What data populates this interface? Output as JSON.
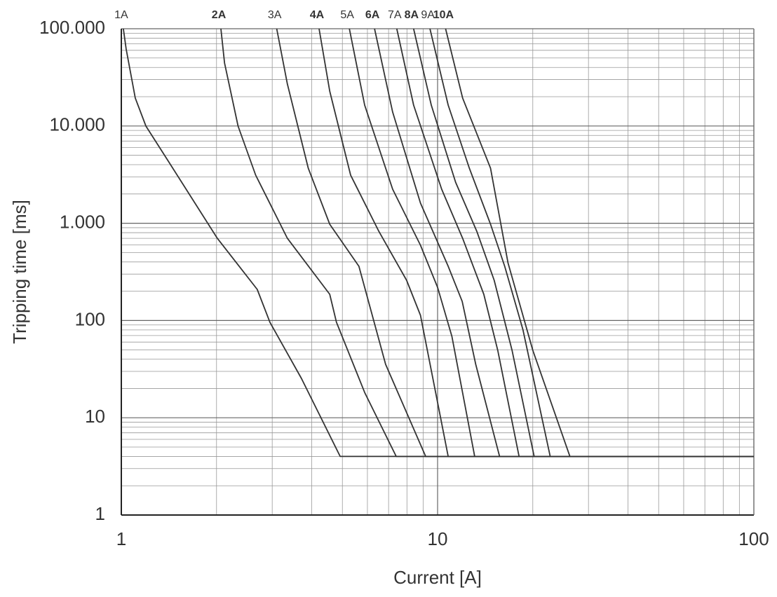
{
  "chart_data": {
    "type": "line",
    "x_label": "Current [A]",
    "y_label": "Tripping time [ms]",
    "xlog": true,
    "ylog": true,
    "grid": true,
    "minor_grid": true,
    "xlim": [
      1,
      100
    ],
    "xticks": [
      1,
      10,
      100
    ],
    "ylim": [
      1,
      100000
    ],
    "yticks": [
      1,
      10,
      100,
      {
        "value": 1000,
        "label": "1.000"
      },
      {
        "value": 10000,
        "label": "10.000"
      },
      {
        "value": 100000,
        "label": "100.000"
      }
    ],
    "series": [
      {
        "name": "1A",
        "bold": false,
        "color": "#333333",
        "x": [
          1.015,
          1.036,
          1.107,
          1.196,
          1.408,
          2.012,
          2.69,
          2.95,
          3.71,
          4.92,
          100
        ],
        "values": [
          100000,
          61800,
          19400,
          9960,
          4350,
          700,
          209,
          96,
          25.4,
          4,
          4
        ]
      },
      {
        "name": "2A",
        "bold": true,
        "color": "#333333",
        "x": [
          2.065,
          2.12,
          2.34,
          2.66,
          3.35,
          4.56,
          4.79,
          5.88,
          7.4,
          100
        ],
        "values": [
          100000,
          44400,
          9960,
          3120,
          700,
          186,
          96,
          18.2,
          4,
          4
        ]
      },
      {
        "name": "3A",
        "bold": false,
        "color": "#333333",
        "x": [
          3.1,
          3.35,
          3.9,
          4.56,
          5.64,
          6.85,
          9.17,
          100
        ],
        "values": [
          100000,
          27000,
          3680,
          977,
          361,
          35.4,
          4,
          4
        ]
      },
      {
        "name": "4A",
        "bold": true,
        "color": "#333333",
        "x": [
          4.22,
          4.56,
          5.31,
          6.52,
          7.98,
          8.83,
          10.8,
          100
        ],
        "values": [
          100000,
          22800,
          3120,
          827,
          259,
          113,
          4,
          4
        ]
      },
      {
        "name": "5A",
        "bold": false,
        "color": "#333333",
        "x": [
          5.26,
          5.88,
          7.21,
          8.83,
          10.0,
          11.1,
          13.1,
          100
        ],
        "values": [
          100000,
          16400,
          2240,
          594,
          219,
          68.7,
          4,
          4
        ]
      },
      {
        "name": "6A",
        "bold": true,
        "color": "#333333",
        "x": [
          6.32,
          7.21,
          8.83,
          10.8,
          11.96,
          13.2,
          15.7,
          100
        ],
        "values": [
          100000,
          13900,
          1610,
          361,
          157,
          35.4,
          4,
          4
        ]
      },
      {
        "name": "7A",
        "bold": false,
        "color": "#333333",
        "x": [
          7.43,
          8.4,
          10.3,
          12.0,
          14.0,
          15.5,
          18.1,
          100
        ],
        "values": [
          100000,
          16400,
          2240,
          700,
          186,
          49.3,
          4,
          4
        ]
      },
      {
        "name": "8A",
        "bold": true,
        "color": "#333333",
        "x": [
          8.4,
          9.55,
          11.4,
          13.3,
          15.1,
          17.2,
          20.2,
          100
        ],
        "values": [
          100000,
          16400,
          2640,
          827,
          259,
          49.3,
          4,
          4
        ]
      },
      {
        "name": "9A",
        "bold": false,
        "color": "#333333",
        "x": [
          9.46,
          10.8,
          12.6,
          14.7,
          16.3,
          18.6,
          22.7,
          100
        ],
        "values": [
          100000,
          16400,
          3680,
          977,
          361,
          81,
          4,
          4
        ]
      },
      {
        "name": "10A",
        "bold": true,
        "color": "#333333",
        "x": [
          10.6,
          12.0,
          14.7,
          16.7,
          20.0,
          26.2,
          100
        ],
        "values": [
          100000,
          19400,
          3680,
          392,
          49.3,
          4,
          4
        ]
      }
    ]
  }
}
